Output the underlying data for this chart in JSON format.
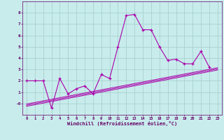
{
  "xlabel": "Windchill (Refroidissement éolien,°C)",
  "bg_color": "#c8ecec",
  "grid_color": "#a8d0d0",
  "line_color": "#aa00aa",
  "text_color": "#660066",
  "xlim": [
    -0.5,
    23.5
  ],
  "ylim": [
    -1.0,
    9.0
  ],
  "xticks": [
    0,
    1,
    2,
    3,
    4,
    5,
    6,
    7,
    8,
    9,
    10,
    11,
    12,
    13,
    14,
    15,
    16,
    17,
    18,
    19,
    20,
    21,
    22,
    23
  ],
  "yticks": [
    0,
    1,
    2,
    3,
    4,
    5,
    6,
    7,
    8
  ],
  "ytick_labels": [
    "-0",
    "1",
    "2",
    "3",
    "4",
    "5",
    "6",
    "7",
    "8"
  ],
  "main_x": [
    0,
    1,
    2,
    3,
    4,
    5,
    6,
    7,
    8,
    9,
    10,
    11,
    12,
    13,
    14,
    15,
    16,
    17,
    18,
    19,
    20,
    21,
    22
  ],
  "main_y": [
    2.0,
    2.0,
    2.0,
    -0.4,
    2.2,
    0.85,
    1.3,
    1.55,
    0.85,
    2.55,
    2.2,
    5.0,
    7.75,
    7.85,
    6.5,
    6.5,
    5.0,
    3.8,
    3.9,
    3.5,
    3.5,
    4.6,
    3.2
  ],
  "line1_x": [
    0,
    23
  ],
  "line1_y": [
    -0.05,
    3.15
  ],
  "line2_x": [
    0,
    23
  ],
  "line2_y": [
    -0.15,
    3.05
  ],
  "line3_x": [
    0,
    23
  ],
  "line3_y": [
    -0.25,
    2.95
  ]
}
